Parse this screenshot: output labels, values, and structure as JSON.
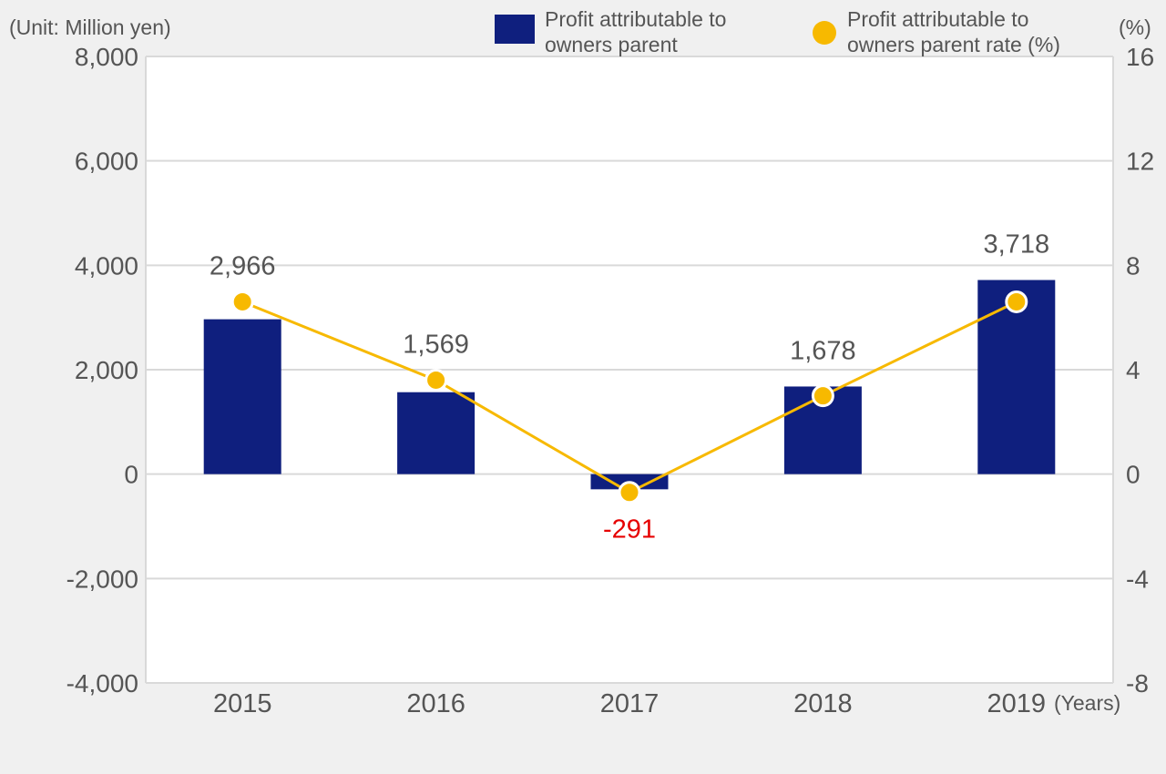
{
  "chart_data": {
    "type": "bar+line",
    "unit_label": "(Unit: Million yen)",
    "right_unit_label": "(%)",
    "x_unit_label": "(Years)",
    "categories": [
      "2015",
      "2016",
      "2017",
      "2018",
      "2019"
    ],
    "series": [
      {
        "name": "Profit attributable to owners parent",
        "name_lines": [
          "Profit attributable to",
          "owners parent"
        ],
        "type": "bar",
        "axis": "left",
        "values": [
          2966,
          1569,
          -291,
          1678,
          3718
        ],
        "labels": [
          "2,966",
          "1,569",
          "-291",
          "1,678",
          "3,718"
        ],
        "color": "#0f1f7e",
        "negative_label_color": "#e60000"
      },
      {
        "name": "Profit attributable to owners parent rate (%)",
        "name_lines": [
          "Profit attributable to",
          "owners parent rate (%)"
        ],
        "type": "line",
        "axis": "right",
        "values": [
          6.6,
          3.6,
          -0.7,
          3.0,
          6.6
        ],
        "color": "#f7b900"
      }
    ],
    "y_left": {
      "min": -4000,
      "max": 8000,
      "ticks": [
        "8,000",
        "6,000",
        "4,000",
        "2,000",
        "0",
        "-2,000",
        "-4,000"
      ],
      "tick_values": [
        8000,
        6000,
        4000,
        2000,
        0,
        -2000,
        -4000
      ]
    },
    "y_right": {
      "min": -8,
      "max": 16,
      "ticks": [
        "16",
        "12",
        "8",
        "4",
        "0",
        "-4",
        "-8"
      ],
      "tick_values": [
        16,
        12,
        8,
        4,
        0,
        -4,
        -8
      ]
    },
    "grid": true,
    "legend_position": "top-right",
    "colors": {
      "background": "#f0f0f0",
      "plot": "#ffffff",
      "grid": "#d9d9d9",
      "text": "#555555"
    }
  }
}
